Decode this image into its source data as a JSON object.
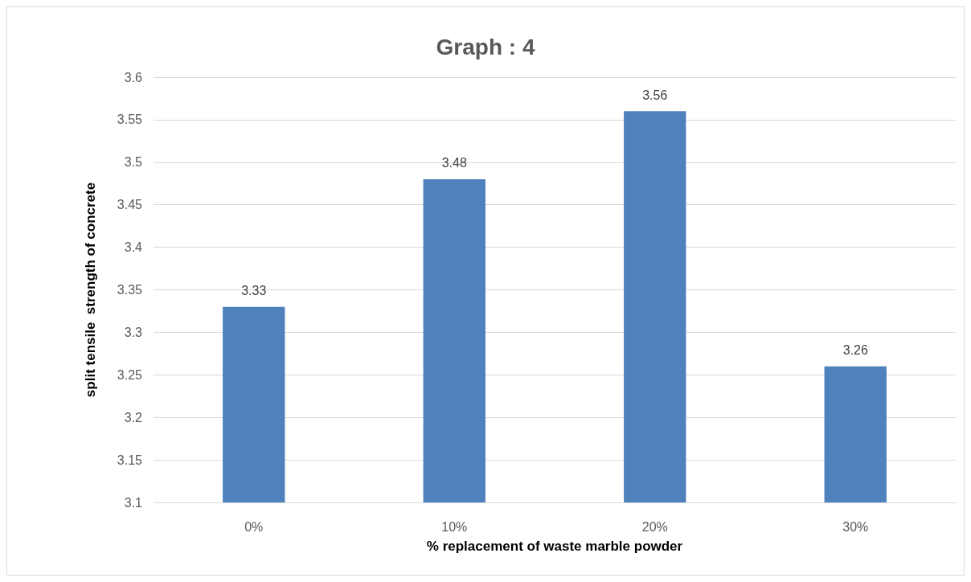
{
  "chart_data": {
    "type": "bar",
    "title": "Graph : 4",
    "xlabel": "% replacement of waste marble powder",
    "ylabel": "split tensile  strength of concrete",
    "categories": [
      "0%",
      "10%",
      "20%",
      "30%"
    ],
    "values": [
      3.33,
      3.48,
      3.56,
      3.26
    ],
    "color": "#4f81bd",
    "ylim": [
      3.1,
      3.6
    ],
    "yticks": [
      3.1,
      3.15,
      3.2,
      3.25,
      3.3,
      3.35,
      3.4,
      3.45,
      3.5,
      3.55,
      3.6
    ],
    "grid": "y",
    "data_labels": true
  }
}
